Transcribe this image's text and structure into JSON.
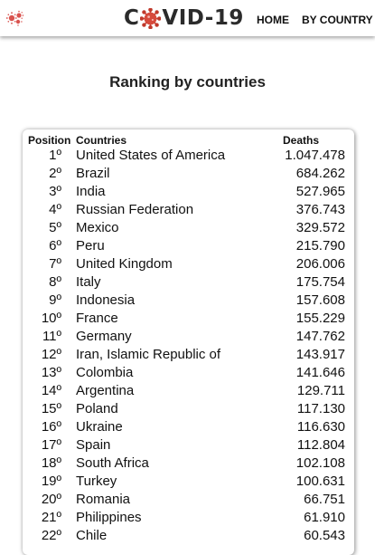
{
  "nav": {
    "logo_prefix": "C",
    "logo_suffix": "VID-19",
    "links": [
      "HOME",
      "BY COUNTRY"
    ],
    "accent_color": "#c0392b"
  },
  "page": {
    "title": "Ranking by countries"
  },
  "table": {
    "headers": {
      "position": "Position",
      "country": "Countries",
      "deaths": "Deaths"
    },
    "rows": [
      {
        "position": "1º",
        "country": "United States of America",
        "deaths": "1.047.478"
      },
      {
        "position": "2º",
        "country": "Brazil",
        "deaths": "684.262"
      },
      {
        "position": "3º",
        "country": "India",
        "deaths": "527.965"
      },
      {
        "position": "4º",
        "country": "Russian Federation",
        "deaths": "376.743"
      },
      {
        "position": "5º",
        "country": "Mexico",
        "deaths": "329.572"
      },
      {
        "position": "6º",
        "country": "Peru",
        "deaths": "215.790"
      },
      {
        "position": "7º",
        "country": "United Kingdom",
        "deaths": "206.006"
      },
      {
        "position": "8º",
        "country": "Italy",
        "deaths": "175.754"
      },
      {
        "position": "9º",
        "country": "Indonesia",
        "deaths": "157.608"
      },
      {
        "position": "10º",
        "country": "France",
        "deaths": "155.229"
      },
      {
        "position": "11º",
        "country": "Germany",
        "deaths": "147.762"
      },
      {
        "position": "12º",
        "country": "Iran, Islamic Republic of",
        "deaths": "143.917"
      },
      {
        "position": "13º",
        "country": "Colombia",
        "deaths": "141.646"
      },
      {
        "position": "14º",
        "country": "Argentina",
        "deaths": "129.711"
      },
      {
        "position": "15º",
        "country": "Poland",
        "deaths": "117.130"
      },
      {
        "position": "16º",
        "country": "Ukraine",
        "deaths": "116.630"
      },
      {
        "position": "17º",
        "country": "Spain",
        "deaths": "112.804"
      },
      {
        "position": "18º",
        "country": "South Africa",
        "deaths": "102.108"
      },
      {
        "position": "19º",
        "country": "Turkey",
        "deaths": "100.631"
      },
      {
        "position": "20º",
        "country": "Romania",
        "deaths": "66.751"
      },
      {
        "position": "21º",
        "country": "Philippines",
        "deaths": "61.910"
      },
      {
        "position": "22º",
        "country": "Chile",
        "deaths": "60.543"
      }
    ]
  }
}
